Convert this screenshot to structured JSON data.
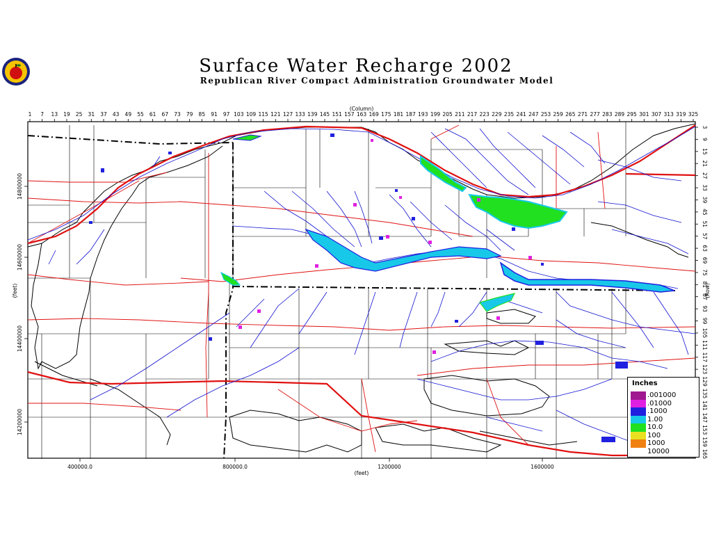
{
  "title": "Surface Water Recharge 2002",
  "subtitle": "Republican River Compact Administration Groundwater Model",
  "logo": {
    "icon": "apple-logo-icon"
  },
  "axes": {
    "column_label": "(Column)",
    "row_label": "(Row)",
    "feet_bottom": "(feet)",
    "feet_left": "(feet)",
    "top_ticks": [
      "1",
      "7",
      "13",
      "19",
      "25",
      "31",
      "37",
      "43",
      "49",
      "55",
      "61",
      "67",
      "73",
      "79",
      "85",
      "91",
      "97",
      "103",
      "109",
      "115",
      "121",
      "127",
      "133",
      "139",
      "145",
      "151",
      "157",
      "163",
      "169",
      "175",
      "181",
      "187",
      "193",
      "199",
      "205",
      "211",
      "217",
      "223",
      "229",
      "235",
      "241",
      "247",
      "253",
      "259",
      "265",
      "271",
      "277",
      "283",
      "289",
      "295",
      "301",
      "307",
      "313",
      "319",
      "325"
    ],
    "right_ticks": [
      "3",
      "9",
      "15",
      "21",
      "27",
      "33",
      "39",
      "45",
      "51",
      "57",
      "63",
      "69",
      "75",
      "81",
      "87",
      "93",
      "99",
      "105",
      "111",
      "117",
      "123",
      "129",
      "135",
      "141",
      "147",
      "153",
      "159",
      "165"
    ],
    "bottom_ticks": [
      "400000.0",
      "800000.0",
      "1200000",
      "1600000"
    ],
    "left_ticks": [
      "14800000",
      "14600000",
      "14400000",
      "14200000"
    ]
  },
  "legend": {
    "title": "Inches",
    "items": [
      {
        "label": ".001000",
        "color": "#a01890"
      },
      {
        "label": ".01000",
        "color": "#e020e0"
      },
      {
        "label": ".1000",
        "color": "#2020e0"
      },
      {
        "label": "1.00",
        "color": "#18c8e8"
      },
      {
        "label": "10.0",
        "color": "#20e020"
      },
      {
        "label": "100",
        "color": "#e8e020"
      },
      {
        "label": "1000",
        "color": "#f08010"
      },
      {
        "label": "10000",
        "color": "#ffffff"
      }
    ]
  },
  "colors": {
    "roads": "#e01010",
    "rivers": "#1010d0",
    "boundaries": "#000000"
  }
}
